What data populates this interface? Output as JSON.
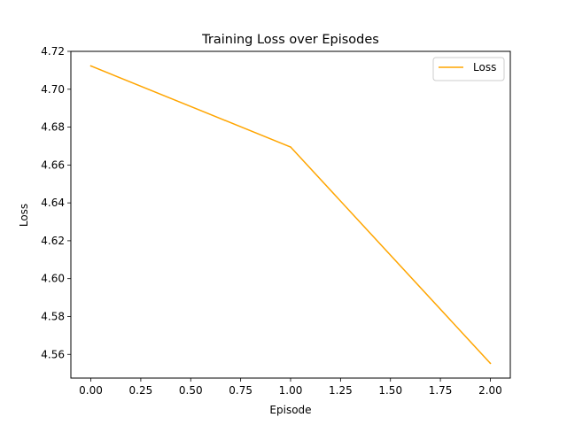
{
  "chart_data": {
    "type": "line",
    "title": "Training Loss over Episodes",
    "xlabel": "Episode",
    "ylabel": "Loss",
    "x": [
      0,
      1,
      2
    ],
    "series": [
      {
        "name": "Loss",
        "color": "#ffa500",
        "values": [
          4.7123,
          4.6695,
          4.5553
        ]
      }
    ],
    "xlim": [
      -0.1,
      2.1
    ],
    "ylim": [
      4.5475,
      4.72
    ],
    "xticks": [
      0.0,
      0.25,
      0.5,
      0.75,
      1.0,
      1.25,
      1.5,
      1.75,
      2.0
    ],
    "xtick_labels": [
      "0.00",
      "0.25",
      "0.50",
      "0.75",
      "1.00",
      "1.25",
      "1.50",
      "1.75",
      "2.00"
    ],
    "yticks": [
      4.56,
      4.58,
      4.6,
      4.62,
      4.64,
      4.66,
      4.68,
      4.7,
      4.72
    ],
    "ytick_labels": [
      "4.56",
      "4.58",
      "4.60",
      "4.62",
      "4.64",
      "4.66",
      "4.68",
      "4.70",
      "4.72"
    ],
    "legend": {
      "placement": "top-right",
      "entries": [
        "Loss"
      ]
    },
    "grid": false
  }
}
